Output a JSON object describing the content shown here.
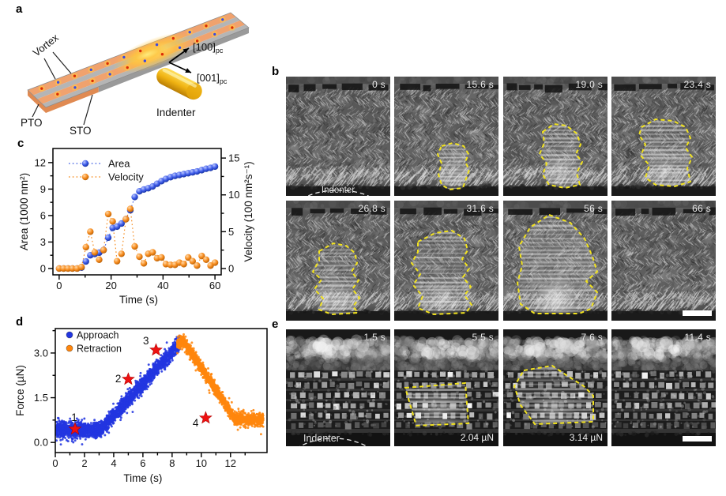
{
  "panels": {
    "a": {
      "label": "a",
      "schematic": {
        "vortex_label": "Vortex",
        "pto_label": "PTO",
        "sto_label": "STO",
        "indenter_label": "Indenter",
        "axis_up": "[100]",
        "axis_up_sub": "pc",
        "axis_down": "[001]",
        "axis_down_sub": "pc",
        "colors": {
          "pto": "#f0a26e",
          "sto": "#b5b5b5",
          "edge_pto": "#e08a52",
          "edge_sto": "#9a9a9a",
          "glow_core": "#ffeb7d",
          "glow_mid": "#ffc43e",
          "vortex_red": "#d92b07",
          "vortex_blue": "#3a4ae0",
          "vortex_ring": "#ffc14d",
          "indenter_light": "#ffdf5e",
          "indenter_dark": "#b97e06"
        }
      }
    },
    "b": {
      "label": "b",
      "frames": [
        {
          "time": "0 s",
          "indenter_label": "Indenter"
        },
        {
          "time": "15.6 s",
          "outline": [
            [
              60,
              88
            ],
            [
              74,
              84
            ],
            [
              88,
              88
            ],
            [
              94,
              98
            ],
            [
              90,
              108
            ],
            [
              95,
              118
            ],
            [
              90,
              132
            ],
            [
              87,
              141
            ],
            [
              70,
              143
            ],
            [
              60,
              137
            ],
            [
              56,
              124
            ],
            [
              60,
              110
            ],
            [
              55,
              98
            ]
          ]
        },
        {
          "time": "19.0 s",
          "outline": [
            [
              50,
              70
            ],
            [
              64,
              60
            ],
            [
              80,
              62
            ],
            [
              93,
              72
            ],
            [
              98,
              86
            ],
            [
              92,
              98
            ],
            [
              100,
              108
            ],
            [
              93,
              122
            ],
            [
              97,
              137
            ],
            [
              78,
              141
            ],
            [
              58,
              137
            ],
            [
              50,
              124
            ],
            [
              55,
              110
            ],
            [
              46,
              98
            ],
            [
              52,
              84
            ]
          ]
        },
        {
          "time": "23.4 s",
          "outline": [
            [
              38,
              64
            ],
            [
              56,
              54
            ],
            [
              78,
              56
            ],
            [
              94,
              64
            ],
            [
              100,
              78
            ],
            [
              94,
              90
            ],
            [
              102,
              102
            ],
            [
              96,
              116
            ],
            [
              100,
              133
            ],
            [
              80,
              139
            ],
            [
              56,
              137
            ],
            [
              43,
              128
            ],
            [
              48,
              112
            ],
            [
              37,
              100
            ],
            [
              43,
              86
            ],
            [
              35,
              74
            ]
          ]
        },
        {
          "time": "26.8 s",
          "outline": [
            [
              42,
              64
            ],
            [
              60,
              54
            ],
            [
              76,
              57
            ],
            [
              87,
              66
            ],
            [
              90,
              79
            ],
            [
              83,
              90
            ],
            [
              92,
              101
            ],
            [
              84,
              112
            ],
            [
              93,
              123
            ],
            [
              85,
              134
            ],
            [
              91,
              142
            ],
            [
              58,
              144
            ],
            [
              42,
              138
            ],
            [
              47,
              124
            ],
            [
              36,
              112
            ],
            [
              45,
              100
            ],
            [
              34,
              90
            ],
            [
              42,
              76
            ]
          ]
        },
        {
          "time": "31.6 s",
          "outline": [
            [
              30,
              52
            ],
            [
              52,
              41
            ],
            [
              73,
              38
            ],
            [
              89,
              48
            ],
            [
              93,
              63
            ],
            [
              86,
              74
            ],
            [
              95,
              86
            ],
            [
              87,
              97
            ],
            [
              97,
              109
            ],
            [
              89,
              120
            ],
            [
              98,
              132
            ],
            [
              91,
              142
            ],
            [
              50,
              144
            ],
            [
              30,
              136
            ],
            [
              36,
              121
            ],
            [
              24,
              107
            ],
            [
              33,
              93
            ],
            [
              22,
              79
            ],
            [
              30,
              65
            ]
          ]
        },
        {
          "time": "56 s",
          "outline": [
            [
              58,
              18
            ],
            [
              85,
              28
            ],
            [
              103,
              48
            ],
            [
              113,
              71
            ],
            [
              119,
              90
            ],
            [
              105,
              102
            ],
            [
              119,
              116
            ],
            [
              111,
              137
            ],
            [
              96,
              143
            ],
            [
              40,
              143
            ],
            [
              22,
              131
            ],
            [
              18,
              104
            ],
            [
              24,
              82
            ],
            [
              20,
              58
            ],
            [
              34,
              34
            ]
          ]
        },
        {
          "time": "66 s",
          "has_scalebar": true
        }
      ]
    },
    "c": {
      "label": "c"
    },
    "d": {
      "label": "d"
    },
    "e": {
      "label": "e",
      "frames": [
        {
          "time": "1.5 s",
          "indenter_label": "Indenter"
        },
        {
          "time": "5.5 s",
          "force": "2.04 µN",
          "outline": [
            [
              14,
              74
            ],
            [
              90,
              68
            ],
            [
              94,
              119
            ],
            [
              28,
              122
            ]
          ]
        },
        {
          "time": "7.6 s",
          "force": "3.14 µN",
          "outline": [
            [
              26,
              52
            ],
            [
              62,
              46
            ],
            [
              80,
              58
            ],
            [
              102,
              72
            ],
            [
              114,
              84
            ],
            [
              114,
              117
            ],
            [
              40,
              120
            ],
            [
              22,
              96
            ],
            [
              14,
              72
            ]
          ]
        },
        {
          "time": "11.4 s",
          "has_scalebar": true
        }
      ]
    }
  },
  "chart_data": [
    {
      "panel": "c",
      "type": "scatter",
      "xlabel": "Time (s)",
      "ylabel_left": "Area (1000 nm²)",
      "ylabel_right": "Velocity (100 nm²s⁻¹)",
      "xlim": [
        -2.4,
        62.4
      ],
      "xticks": [
        0,
        20,
        40,
        60
      ],
      "xticks_minor": [
        10,
        30,
        50
      ],
      "ylim_left": [
        -0.72,
        13.6
      ],
      "yticks_left": [
        0,
        3,
        6,
        9,
        12
      ],
      "yticks_left_minor": [
        1.5,
        4.5,
        7.5,
        10.5
      ],
      "ylim_right": [
        -0.86,
        16.3
      ],
      "yticks_right": [
        0,
        5,
        10,
        15
      ],
      "yticks_right_minor": [
        2.5,
        7.5,
        12.5
      ],
      "grid": false,
      "legend_position": "top-left",
      "legend": [
        {
          "label": "Area",
          "color": "#2e4fe0"
        },
        {
          "label": "Velocity",
          "color": "#f5820b"
        }
      ],
      "series": [
        {
          "name": "Area",
          "axis": "left",
          "color": "#2e4fe0",
          "x": [
            0,
            1.7,
            3.4,
            5.1,
            6.9,
            8.6,
            10.3,
            12,
            13.7,
            15.4,
            17.1,
            18.9,
            20.6,
            22.3,
            24,
            25.7,
            27.4,
            29.1,
            30.9,
            32.6,
            34.3,
            36,
            37.7,
            39.4,
            41.1,
            42.9,
            44.6,
            46.3,
            48,
            49.7,
            51.4,
            53.1,
            54.9,
            56.6,
            58.3,
            60
          ],
          "y": [
            0,
            0,
            0,
            0,
            0,
            0.1,
            0.8,
            1.5,
            1.65,
            1.8,
            2.1,
            3.5,
            4.6,
            4.75,
            5.1,
            5.6,
            6.6,
            8.1,
            8.75,
            8.95,
            9.1,
            9.3,
            9.6,
            9.9,
            10.15,
            10.35,
            10.5,
            10.6,
            10.7,
            10.8,
            10.9,
            11.0,
            11.15,
            11.3,
            11.4,
            11.55
          ]
        },
        {
          "name": "Velocity",
          "axis": "right",
          "color": "#f5820b",
          "x": [
            0,
            1.7,
            3.4,
            5.1,
            6.9,
            8.6,
            10.3,
            12,
            13.7,
            15.4,
            17.1,
            18.9,
            20.6,
            22.3,
            24,
            25.7,
            27.4,
            29.1,
            30.9,
            32.6,
            34.3,
            36,
            37.7,
            39.4,
            41.1,
            42.9,
            44.6,
            46.3,
            48,
            49.7,
            51.4,
            53.1,
            54.9,
            56.6,
            58.3,
            60
          ],
          "y": [
            0,
            0,
            0,
            0,
            0,
            0.2,
            2.9,
            5.0,
            2.2,
            1.2,
            2.5,
            7.4,
            6.4,
            1.0,
            2.0,
            6.7,
            8.1,
            3.0,
            1.6,
            0.7,
            2.0,
            2.2,
            1.4,
            1.5,
            0.6,
            0.5,
            0.5,
            0.8,
            0.6,
            1.5,
            1.0,
            0.4,
            1.7,
            1.2,
            0.4,
            0.8
          ]
        }
      ]
    },
    {
      "panel": "d",
      "type": "scatter",
      "xlabel": "Time (s)",
      "ylabel": "Force (µN)",
      "xlim": [
        0,
        14.5
      ],
      "xticks": [
        0,
        2,
        4,
        6,
        8,
        10,
        12
      ],
      "xticks_minor": [
        1,
        3,
        5,
        7,
        9,
        11,
        13
      ],
      "ylim": [
        -0.34,
        3.82
      ],
      "yticks": [
        0.0,
        1.5,
        3.0
      ],
      "ytick_labels": [
        "0.0",
        "1.5",
        "3.0"
      ],
      "yticks_minor": [
        0.75,
        2.25,
        3.75
      ],
      "grid": false,
      "legend_position": "top-left",
      "legend": [
        {
          "label": "Approach",
          "color": "#2236e0"
        },
        {
          "label": "Retraction",
          "color": "#ff860d"
        }
      ],
      "series": [
        {
          "name": "Approach",
          "color": "#2236e0",
          "n_points": 2600,
          "noise_sigma": 0.13,
          "t_range": [
            0.05,
            8.55
          ],
          "trend": {
            "x": [
              0,
              3.1,
              8.55
            ],
            "y": [
              0.42,
              0.42,
              3.35
            ]
          }
        },
        {
          "name": "Retraction",
          "color": "#ff860d",
          "n_points": 1900,
          "noise_sigma": 0.1,
          "t_range": [
            8.35,
            14.25
          ],
          "trend": {
            "x": [
              8.35,
              8.75,
              12.3,
              14.3
            ],
            "y": [
              3.3,
              3.42,
              0.8,
              0.74
            ]
          }
        }
      ],
      "stars": {
        "color": "#ee1111",
        "points": [
          {
            "label": "1",
            "t": 1.35,
            "f": 0.45
          },
          {
            "label": "2",
            "t": 5.0,
            "f": 2.12
          },
          {
            "label": "3",
            "t": 6.9,
            "f": 3.1
          },
          {
            "label": "4",
            "t": 10.3,
            "f": 0.82
          }
        ]
      }
    }
  ]
}
